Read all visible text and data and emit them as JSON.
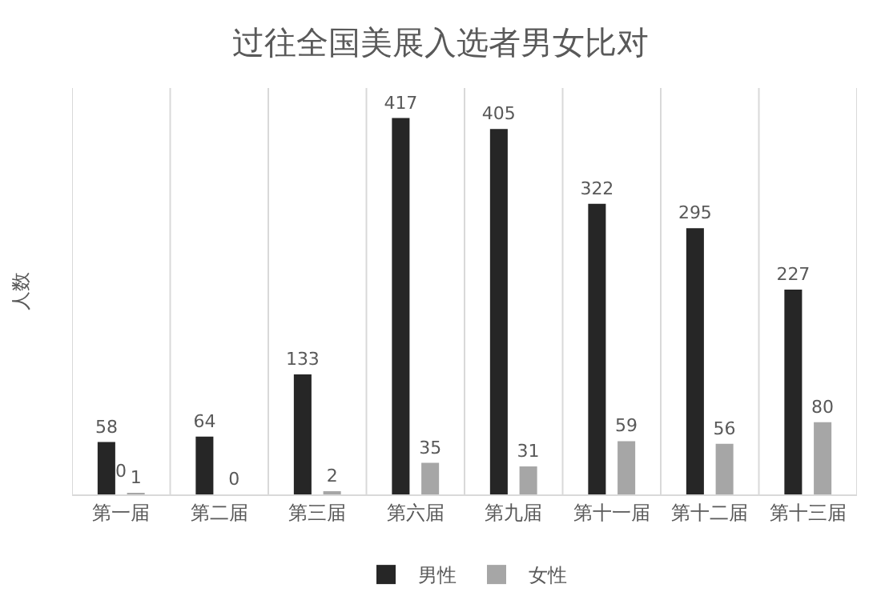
{
  "chart_data": {
    "type": "bar",
    "title": "过往全国美展入选者男女比对",
    "ylabel": "人数",
    "categories": [
      "第一届",
      "第二届",
      "第三届",
      "第六届",
      "第九届",
      "第十一届",
      "第十二届",
      "第十三届"
    ],
    "series": [
      {
        "name": "男性",
        "color": "#262626",
        "values": [
          58,
          64,
          133,
          417,
          405,
          322,
          295,
          227
        ]
      },
      {
        "name": "女性",
        "color": "#a6a6a6",
        "values": [
          1,
          0,
          2,
          35,
          31,
          59,
          56,
          80
        ]
      }
    ],
    "annotations": [
      "0"
    ],
    "data_labels": true,
    "grid": "x",
    "legend": "bottom"
  }
}
